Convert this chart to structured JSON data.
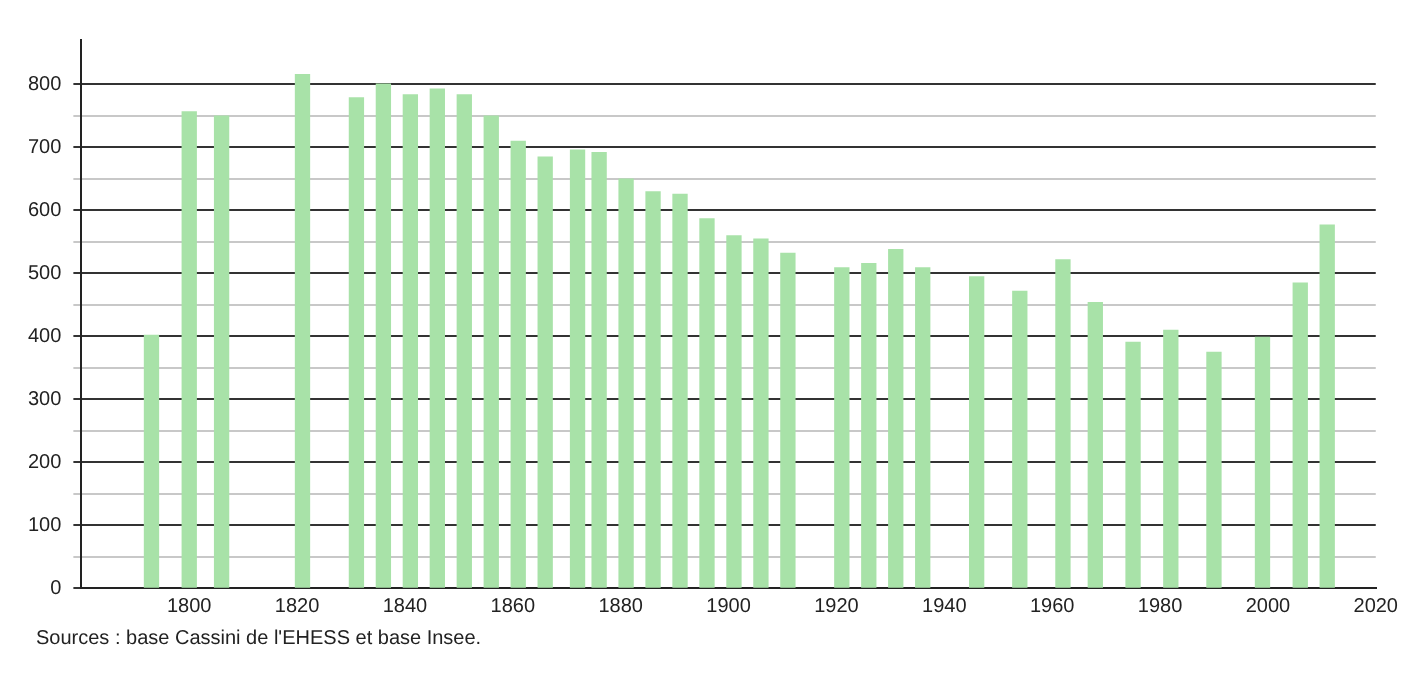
{
  "chart_data": {
    "type": "bar",
    "x": [
      1793,
      1800,
      1806,
      1821,
      1831,
      1836,
      1841,
      1846,
      1851,
      1856,
      1861,
      1866,
      1872,
      1876,
      1881,
      1886,
      1891,
      1896,
      1901,
      1906,
      1911,
      1921,
      1926,
      1931,
      1936,
      1946,
      1954,
      1962,
      1968,
      1975,
      1982,
      1990,
      1999,
      2006,
      2011
    ],
    "values": [
      401,
      756,
      749,
      815,
      778,
      800,
      783,
      792,
      783,
      749,
      709,
      684,
      695,
      691,
      649,
      629,
      625,
      586,
      559,
      554,
      531,
      508,
      515,
      537,
      508,
      494,
      471,
      521,
      453,
      390,
      409,
      374,
      398,
      484,
      576
    ],
    "color": "#a8e2a8",
    "xlim": [
      1780,
      2020
    ],
    "xticks": [
      1800,
      1820,
      1840,
      1860,
      1880,
      1900,
      1920,
      1940,
      1960,
      1980,
      2000,
      2020
    ],
    "ylim": [
      0,
      870
    ],
    "yticks": [
      0,
      {
        "value": 50,
        "label": null
      },
      100,
      {
        "value": 150,
        "label": null
      },
      200,
      {
        "value": 250,
        "label": null
      },
      300,
      {
        "value": 350,
        "label": null
      },
      400,
      {
        "value": 450,
        "label": null
      },
      500,
      {
        "value": 550,
        "label": null
      },
      600,
      {
        "value": 650,
        "label": null
      },
      700,
      {
        "value": 750,
        "label": null
      },
      800
    ],
    "grid": "y",
    "legend": false,
    "annotations": [
      "Sources : base Cassini de l'EHESS et base Insee."
    ]
  }
}
